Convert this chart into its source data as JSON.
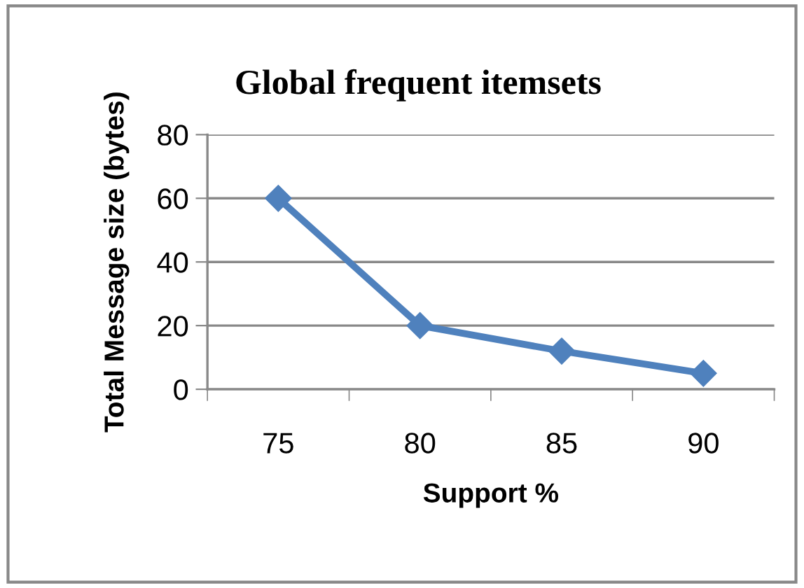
{
  "chart_data": {
    "type": "line",
    "title": "Global frequent itemsets",
    "xlabel": "Support %",
    "ylabel": "Total Message size (bytes)",
    "categories": [
      "75",
      "80",
      "85",
      "90"
    ],
    "series": [
      {
        "color": "#4f81bd",
        "values": [
          60,
          20,
          12,
          5
        ]
      }
    ],
    "ylim": [
      0,
      80
    ],
    "yticks": [
      0,
      20,
      40,
      60,
      80
    ],
    "grid": "y",
    "marker": "diamond",
    "line_style": "solid"
  }
}
